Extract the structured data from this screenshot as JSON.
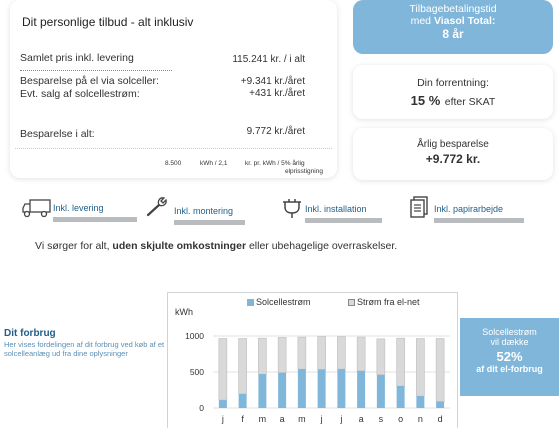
{
  "offer": {
    "title": "Dit personlige tilbud - alt inklusiv",
    "price_label": "Samlet pris inkl.  levering",
    "price_value": "115.241 kr.  / i alt",
    "saving_el_label": "Besparelse på el via solceller:",
    "saving_el_value": "+9.341 kr./året",
    "sale_label": "Evt. salg af solcellestrøm:",
    "sale_value": "+431 kr./året",
    "total_label": "Besparelse i alt:",
    "total_value": "9.772 kr./året",
    "footnote_1": "8.500",
    "footnote_2": "kWh / 2,1",
    "footnote_3": "kr. pr. kWh / 5% årlig",
    "footnote_4": "elprisstigning"
  },
  "payback": {
    "line1": "Tilbagebetalingstid",
    "line2_prefix": "med ",
    "line2_brand": "Viasol Total:",
    "value": "8 år"
  },
  "interest": {
    "label": "Din forrentning:",
    "value": "15 %",
    "suffix": "efter SKAT"
  },
  "annual": {
    "label": "Årlig besparelse",
    "value": "+9.772 kr."
  },
  "features": [
    {
      "label": "Inkl. levering",
      "icon": "truck-icon"
    },
    {
      "label": "Inkl. montering",
      "icon": "wrench-icon"
    },
    {
      "label": "Inkl. installation",
      "icon": "plug-icon"
    },
    {
      "label": "Inkl. papirarbejde",
      "icon": "document-icon"
    }
  ],
  "tagline": {
    "prefix": "Vi sørger for alt, ",
    "bold": "uden skjulte omkostninger",
    "suffix": " eller ubehagelige overraskelser."
  },
  "forbrug": {
    "title": "Dit forbrug",
    "description": "Her vises fordelingen af dit forbrug ved køb af et solcelleanlæg ud fra dine oplysninger"
  },
  "coverage": {
    "line1": "Solcellestrøm",
    "line2": "vil dække",
    "value": "52%",
    "line4": "af dit el-forbrug"
  },
  "colors": {
    "accent_blue": "#7fb6da",
    "title_blue": "#1f5e8a",
    "grid_bar_grey": "#d9d9d9"
  },
  "chart_data": {
    "type": "bar",
    "ylabel": "kWh",
    "ylim": [
      0,
      1000
    ],
    "yticks": [
      0,
      500,
      1000
    ],
    "categories": [
      "j",
      "f",
      "m",
      "a",
      "m",
      "j",
      "j",
      "a",
      "s",
      "o",
      "n",
      "d"
    ],
    "series": [
      {
        "name": "Solcellestrøm",
        "values": [
          110,
          195,
          470,
          490,
          540,
          535,
          540,
          515,
          460,
          305,
          165,
          90
        ]
      },
      {
        "name": "Strøm fra el-net",
        "values": [
          855,
          770,
          500,
          490,
          445,
          455,
          450,
          470,
          500,
          665,
          800,
          875
        ]
      }
    ],
    "legend_position": "top",
    "stacked": true,
    "grid": true
  }
}
